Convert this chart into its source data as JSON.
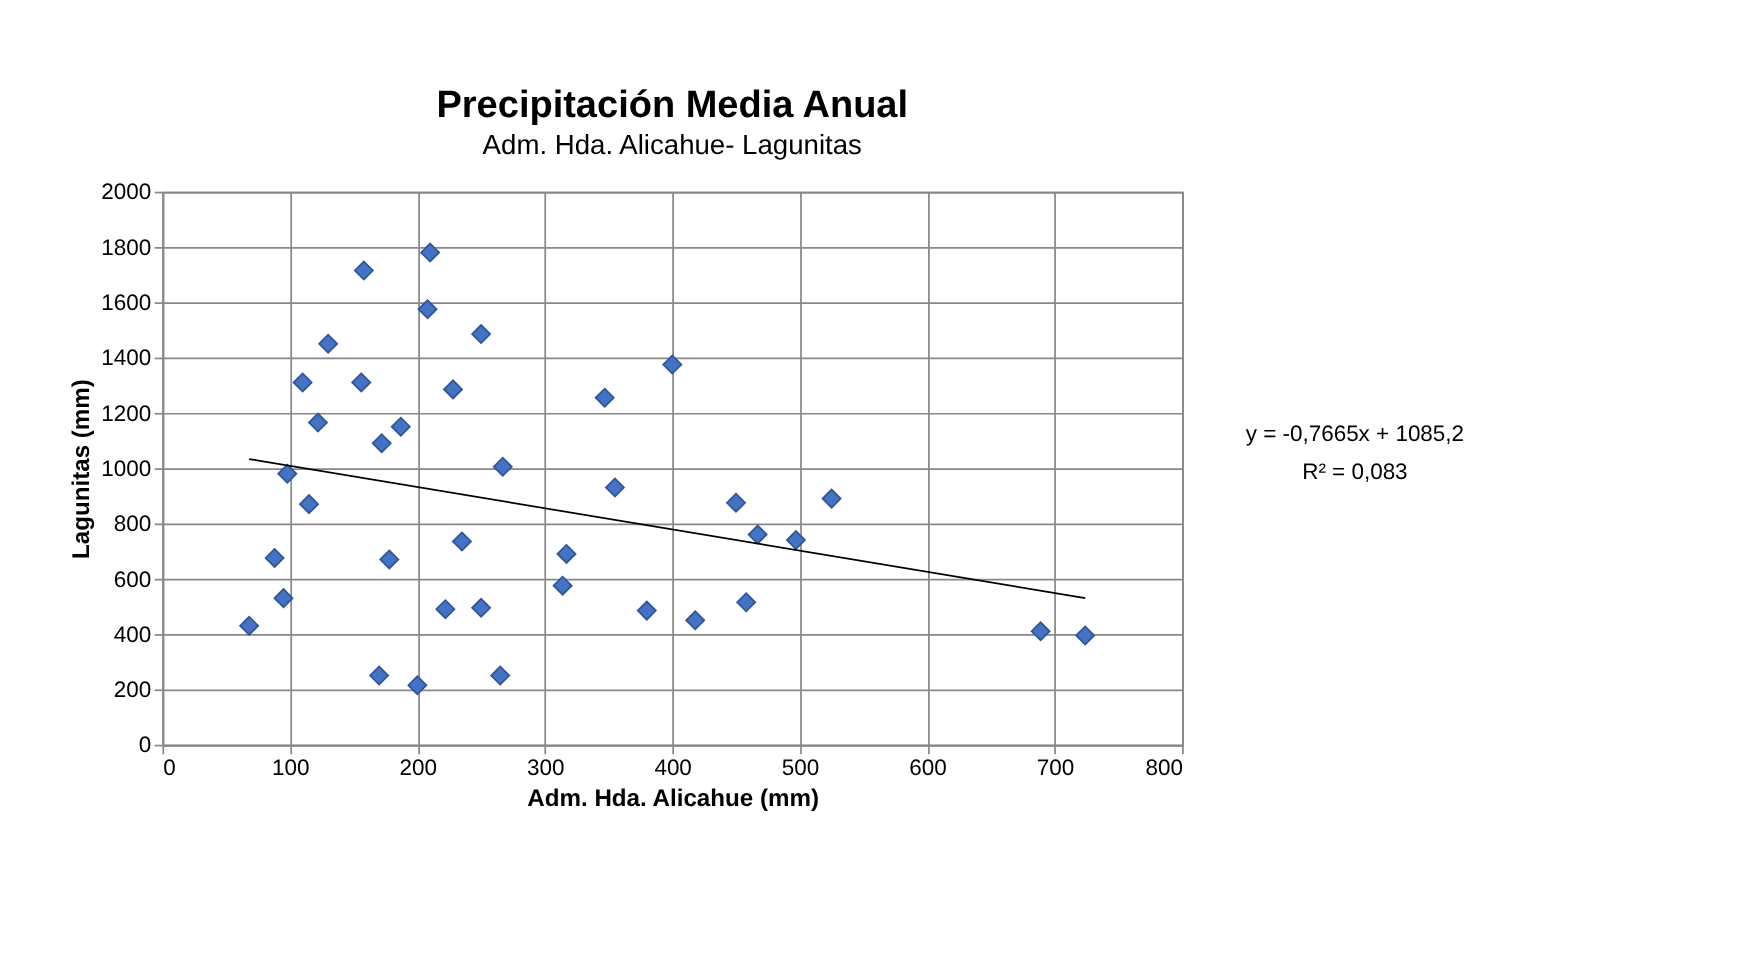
{
  "chart_data": {
    "type": "scatter",
    "title": "Precipitación Media Anual",
    "subtitle": "Adm. Hda. Alicahue- Lagunitas",
    "xlabel": "Adm. Hda. Alicahue (mm)",
    "ylabel": "Lagunitas  (mm)",
    "xlim": [
      0,
      800
    ],
    "xticks": [
      0,
      100,
      200,
      300,
      400,
      500,
      600,
      700,
      800
    ],
    "ylim": [
      0,
      2000
    ],
    "yticks": [
      0,
      200,
      400,
      600,
      800,
      1000,
      1200,
      1400,
      1600,
      1800,
      2000
    ],
    "grid": true,
    "marker": "diamond",
    "series": [
      {
        "type": "scatter",
        "color": "#4472c4",
        "x": [
          68,
          88,
          95,
          98,
          115,
          110,
          122,
          130,
          158,
          156,
          172,
          187,
          170,
          178,
          200,
          210,
          208,
          222,
          228,
          235,
          250,
          250,
          265,
          267,
          314,
          317,
          347,
          355,
          380,
          400,
          418,
          450,
          458,
          467,
          497,
          525,
          689,
          724
        ],
        "values": [
          430,
          675,
          530,
          980,
          870,
          1310,
          1165,
          1450,
          1715,
          1310,
          1090,
          1150,
          250,
          670,
          215,
          1780,
          1575,
          490,
          1285,
          735,
          1485,
          495,
          250,
          1005,
          575,
          690,
          1255,
          930,
          485,
          1375,
          450,
          875,
          515,
          760,
          740,
          890,
          410,
          395
        ]
      },
      {
        "type": "line",
        "color": "#000000",
        "x": [
          68,
          724
        ],
        "values": [
          1033,
          530
        ],
        "marker": "none"
      }
    ],
    "annotations": [
      "y = -0,7665x + 1085,2",
      "R² = 0,083"
    ]
  }
}
